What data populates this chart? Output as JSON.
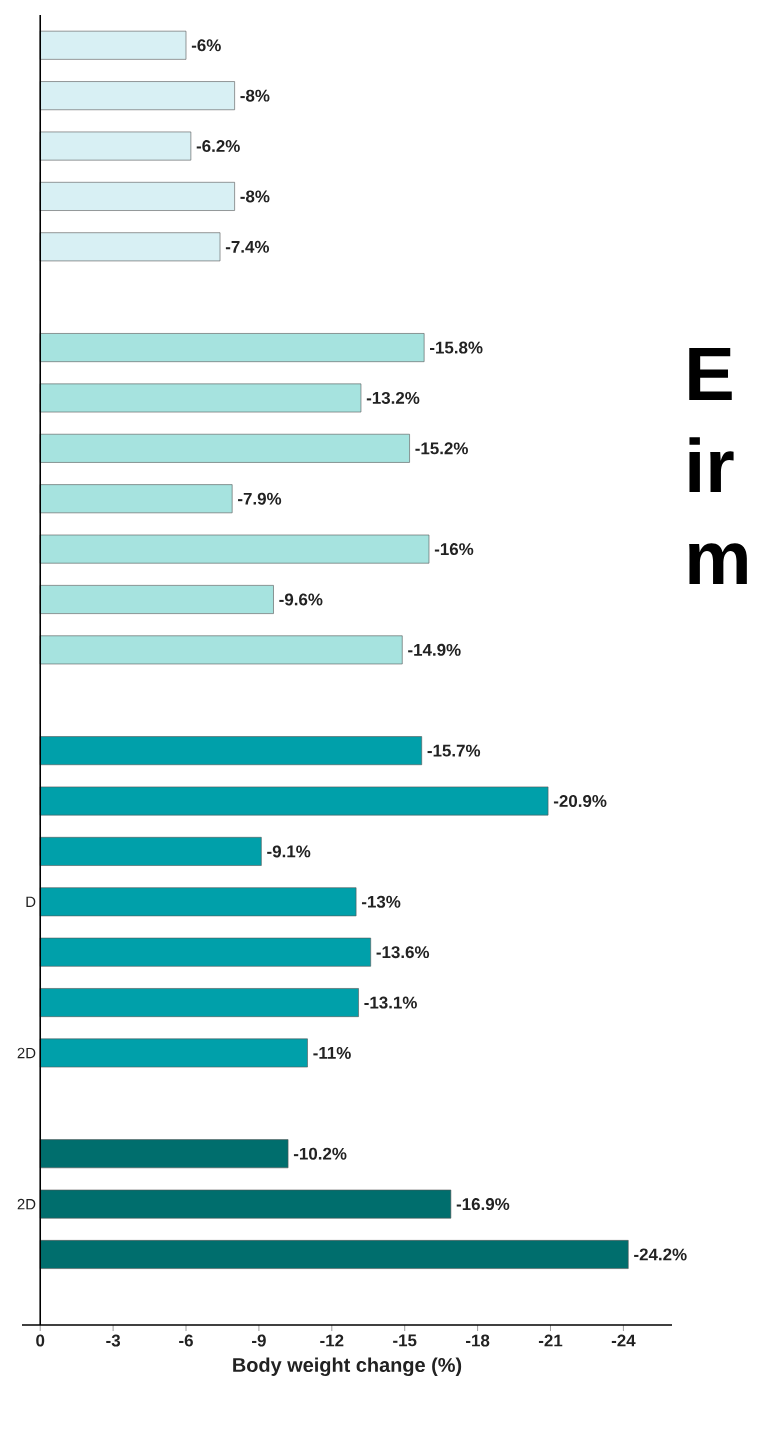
{
  "chart_data": {
    "type": "bar",
    "orientation": "horizontal",
    "xlabel": "Body weight change (%)",
    "categories": [
      null,
      null,
      null,
      null,
      null,
      null,
      null,
      null,
      null,
      null,
      null,
      null,
      null,
      null,
      null,
      null,
      null,
      "D",
      null,
      null,
      "2D",
      null,
      null,
      "2D",
      null
    ],
    "values": [
      -6,
      -8,
      -6.2,
      -8,
      -7.4,
      null,
      -15.8,
      -13.2,
      -15.2,
      -7.9,
      -16,
      -9.6,
      -14.9,
      null,
      -15.7,
      -20.9,
      -9.1,
      -13,
      -13.6,
      -13.1,
      -11,
      null,
      -10.2,
      -16.9,
      -24.2
    ],
    "value_labels": [
      "-6%",
      "-8%",
      "-6.2%",
      "-8%",
      "-7.4%",
      null,
      "-15.8%",
      "-13.2%",
      "-15.2%",
      "-7.9%",
      "-16%",
      "-9.6%",
      "-14.9%",
      null,
      "-15.7%",
      "-20.9%",
      "-9.1%",
      "-13%",
      "-13.6%",
      "-13.1%",
      "-11%",
      null,
      "-10.2%",
      "-16.9%",
      "-24.2%"
    ],
    "colors": [
      "#d8f0f4",
      "#d8f0f4",
      "#d8f0f4",
      "#d8f0f4",
      "#d8f0f4",
      null,
      "#a6e3df",
      "#a6e3df",
      "#a6e3df",
      "#a6e3df",
      "#a6e3df",
      "#a6e3df",
      "#a6e3df",
      null,
      "#00a0aa",
      "#00a0aa",
      "#00a0aa",
      "#00a0aa",
      "#00a0aa",
      "#00a0aa",
      "#00a0aa",
      null,
      "#006e6d",
      "#006e6d",
      "#006e6d"
    ],
    "xlim": [
      0.75,
      -26
    ],
    "xticks": [
      0,
      -3,
      -6,
      -9,
      -12,
      -15,
      -18,
      -21,
      -24
    ],
    "annotations": [
      "E",
      "ir",
      "m"
    ]
  }
}
